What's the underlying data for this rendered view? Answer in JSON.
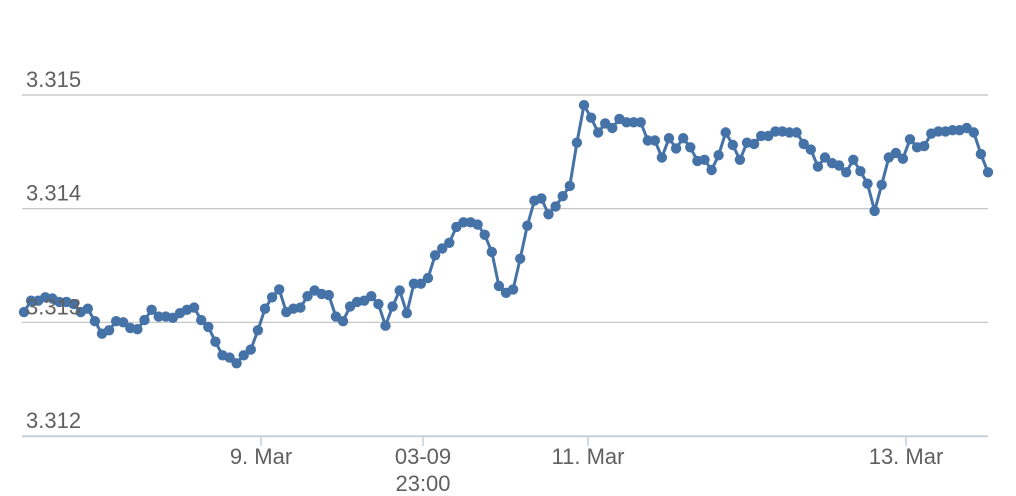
{
  "chart_data": {
    "type": "line",
    "title": "",
    "xlabel": "",
    "ylabel": "",
    "ylim": [
      3.312,
      3.315
    ],
    "yticks": [
      "3.312",
      "3.313",
      "3.314",
      "3.315"
    ],
    "xticks": [
      {
        "label": "9. Mar",
        "sub": ""
      },
      {
        "label": "03-09",
        "sub": "23:00"
      },
      {
        "label": "11. Mar",
        "sub": ""
      },
      {
        "label": "13. Mar",
        "sub": ""
      }
    ],
    "grid": true,
    "legend": "none",
    "color": "#4572A7",
    "series": [
      {
        "values": [
          3.31309,
          3.31319,
          3.31319,
          3.31322,
          3.31321,
          3.31318,
          3.31318,
          3.31316,
          3.31309,
          3.31312,
          3.31301,
          3.3129,
          3.31293,
          3.31301,
          3.313,
          3.31295,
          3.31294,
          3.31302,
          3.31311,
          3.31305,
          3.31305,
          3.31304,
          3.31308,
          3.31311,
          3.31313,
          3.31302,
          3.31296,
          3.31283,
          3.31271,
          3.31269,
          3.31264,
          3.31271,
          3.31276,
          3.31293,
          3.31312,
          3.31322,
          3.31329,
          3.31309,
          3.31312,
          3.31313,
          3.31323,
          3.31328,
          3.31325,
          3.31324,
          3.31305,
          3.31301,
          3.31314,
          3.31318,
          3.31319,
          3.31323,
          3.31316,
          3.31297,
          3.31314,
          3.31328,
          3.31308,
          3.31334,
          3.31334,
          3.31339,
          3.31359,
          3.31365,
          3.3137,
          3.31384,
          3.31388,
          3.31388,
          3.31386,
          3.31377,
          3.31362,
          3.31332,
          3.31326,
          3.31329,
          3.31356,
          3.31385,
          3.31407,
          3.31409,
          3.31395,
          3.31402,
          3.31411,
          3.3142,
          3.31458,
          3.31491,
          3.3148,
          3.31467,
          3.31475,
          3.31471,
          3.31479,
          3.31476,
          3.31476,
          3.31476,
          3.3146,
          3.3146,
          3.31445,
          3.31462,
          3.31453,
          3.31462,
          3.31454,
          3.31442,
          3.31443,
          3.31434,
          3.31447,
          3.31467,
          3.31456,
          3.31443,
          3.31458,
          3.31457,
          3.31464,
          3.31464,
          3.31468,
          3.31468,
          3.31467,
          3.31467,
          3.31457,
          3.31452,
          3.31437,
          3.31445,
          3.3144,
          3.31438,
          3.31432,
          3.31443,
          3.31433,
          3.31422,
          3.31398,
          3.31421,
          3.31445,
          3.31449,
          3.31444,
          3.31461,
          3.31454,
          3.31455,
          3.31466,
          3.31468,
          3.31468,
          3.31469,
          3.31469,
          3.31471,
          3.31467,
          3.31448,
          3.31432
        ]
      }
    ]
  }
}
